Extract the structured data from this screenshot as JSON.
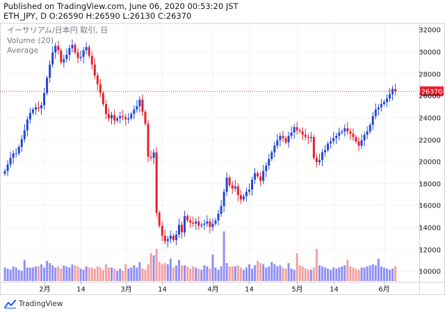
{
  "header": {
    "published": "Published on TradingView.com, June 06, 2020 00:53:20 JST",
    "ohlc_line": "ETH_JPY, D O:26590 H:26590 L:26130 C:26370"
  },
  "legend": {
    "title": "イーサリアム/日本円 取引, 日",
    "volume": "Volume (20)",
    "average": "Average"
  },
  "footer": {
    "brand": "TradingView"
  },
  "colors": {
    "up": "#2346d6",
    "down": "#e8202a",
    "vol_up": "#8f8ff5",
    "vol_down": "#f4a0a0",
    "last_price": "#e8202a"
  },
  "chart_data": {
    "type": "candlestick",
    "ylim": [
      9000,
      32600
    ],
    "y_ticks": [
      10000,
      12000,
      14000,
      16000,
      18000,
      20000,
      22000,
      24000,
      26000,
      28000,
      30000,
      32000
    ],
    "y_tick_labels": [
      "10000",
      "12000",
      "14000",
      "16000",
      "18000",
      "20000",
      "22000",
      "24000",
      "26000",
      "28000",
      "30000",
      "32000"
    ],
    "x_ticks": [
      {
        "index": 14,
        "label": "2月"
      },
      {
        "index": 27,
        "label": "14"
      },
      {
        "index": 43,
        "label": "3月"
      },
      {
        "index": 56,
        "label": "14"
      },
      {
        "index": 74,
        "label": "4月"
      },
      {
        "index": 87,
        "label": "14"
      },
      {
        "index": 104,
        "label": "5月"
      },
      {
        "index": 117,
        "label": "14"
      },
      {
        "index": 135,
        "label": "6月"
      }
    ],
    "last_price": 26370,
    "last_price_label": "26370",
    "closes": [
      19100,
      19700,
      20300,
      20700,
      20700,
      21300,
      22000,
      22800,
      23800,
      24400,
      24700,
      24900,
      24800,
      25100,
      26200,
      27600,
      28800,
      29900,
      30500,
      30100,
      29000,
      29300,
      29700,
      30300,
      30600,
      29900,
      29400,
      29500,
      30100,
      30400,
      29600,
      28800,
      27800,
      27000,
      26200,
      25200,
      24300,
      23900,
      24200,
      23700,
      23900,
      24100,
      24000,
      23800,
      23900,
      24300,
      24700,
      25000,
      25600,
      24500,
      23400,
      20400,
      20300,
      20800,
      15300,
      14100,
      13200,
      12700,
      12900,
      13200,
      12800,
      13300,
      14200,
      13500,
      15000,
      14600,
      14400,
      14300,
      14500,
      14100,
      14200,
      14300,
      14500,
      14000,
      14300,
      14600,
      15200,
      15900,
      17200,
      18500,
      17800,
      17500,
      17700,
      16900,
      16500,
      16800,
      17200,
      17400,
      18300,
      18900,
      18600,
      18200,
      19100,
      19600,
      20200,
      20800,
      21400,
      21900,
      22300,
      22100,
      21700,
      22300,
      22600,
      23100,
      22800,
      22700,
      22400,
      22200,
      22100,
      22200,
      20300,
      19900,
      20100,
      20800,
      21000,
      21600,
      21800,
      22100,
      22300,
      22600,
      22700,
      23000,
      22700,
      22500,
      22200,
      21800,
      21400,
      21900,
      22400,
      22700,
      23300,
      24100,
      24700,
      24900,
      25200,
      25400,
      25700,
      26100,
      26590,
      26370
    ],
    "volumes": [
      10300,
      10200,
      10100,
      10400,
      10300,
      10100,
      10000,
      11000,
      10300,
      10300,
      10300,
      10400,
      10400,
      10600,
      10300,
      10900,
      10700,
      10500,
      10300,
      10400,
      10200,
      10500,
      10400,
      10300,
      10600,
      10500,
      10400,
      10200,
      10100,
      10400,
      10300,
      10300,
      10200,
      10400,
      10300,
      10100,
      10600,
      10300,
      10300,
      10200,
      10000,
      10200,
      10000,
      10600,
      10200,
      10300,
      10500,
      10300,
      10800,
      10200,
      10100,
      10600,
      11600,
      11400,
      12000,
      10800,
      10600,
      10700,
      10600,
      11100,
      10300,
      10500,
      11000,
      10500,
      10500,
      10400,
      10200,
      10400,
      10300,
      10200,
      10100,
      10500,
      10400,
      10200,
      11500,
      10300,
      10100,
      10400,
      13600,
      10700,
      10400,
      10400,
      10400,
      10500,
      10300,
      10100,
      10300,
      10600,
      10200,
      10500,
      10900,
      10700,
      10600,
      10300,
      10400,
      10800,
      10600,
      10400,
      10500,
      10300,
      10200,
      10700,
      10200,
      10100,
      11600,
      10500,
      10400,
      10200,
      10100,
      10100,
      10300,
      12000,
      10500,
      10400,
      10300,
      10200,
      10100,
      10300,
      10200,
      10300,
      10400,
      10500,
      11000,
      10400,
      10300,
      10200,
      10100,
      10300,
      10300,
      10400,
      10500,
      10600,
      10500,
      11100,
      10400,
      10300,
      10200,
      10100,
      10200,
      10400
    ]
  }
}
